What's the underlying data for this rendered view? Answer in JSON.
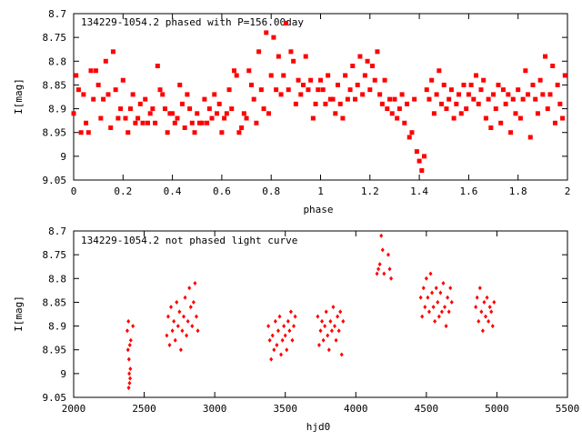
{
  "chart_data": [
    {
      "type": "scatter",
      "title": "134229-1054.2 phased with P=156.00day",
      "xlabel": "phase",
      "ylabel": "I[mag]",
      "xlim": [
        0,
        2
      ],
      "ylim": [
        8.7,
        9.05
      ],
      "y_inverted": true,
      "grid": false,
      "marker_color": "#ff0000",
      "marker": "filled-star",
      "xticks": [
        "0",
        "0.2",
        "0.4",
        "0.6",
        "0.8",
        "1",
        "1.2",
        "1.4",
        "1.6",
        "1.8",
        "2"
      ],
      "yticks": [
        "8.7",
        "8.75",
        "8.8",
        "8.85",
        "8.9",
        "8.95",
        "9",
        "9.05"
      ],
      "points": [
        [
          0.0,
          8.91
        ],
        [
          0.01,
          8.83
        ],
        [
          0.02,
          8.86
        ],
        [
          0.03,
          8.95
        ],
        [
          0.04,
          8.87
        ],
        [
          0.05,
          8.93
        ],
        [
          0.06,
          8.95
        ],
        [
          0.07,
          8.82
        ],
        [
          0.08,
          8.88
        ],
        [
          0.09,
          8.82
        ],
        [
          0.1,
          8.85
        ],
        [
          0.11,
          8.92
        ],
        [
          0.12,
          8.88
        ],
        [
          0.13,
          8.8
        ],
        [
          0.14,
          8.87
        ],
        [
          0.15,
          8.94
        ],
        [
          0.16,
          8.78
        ],
        [
          0.17,
          8.86
        ],
        [
          0.18,
          8.92
        ],
        [
          0.19,
          8.9
        ],
        [
          0.2,
          8.84
        ],
        [
          0.21,
          8.92
        ],
        [
          0.22,
          8.95
        ],
        [
          0.23,
          8.9
        ],
        [
          0.24,
          8.87
        ],
        [
          0.25,
          8.93
        ],
        [
          0.26,
          8.92
        ],
        [
          0.27,
          8.89
        ],
        [
          0.28,
          8.93
        ],
        [
          0.29,
          8.88
        ],
        [
          0.3,
          8.93
        ],
        [
          0.31,
          8.91
        ],
        [
          0.32,
          8.9
        ],
        [
          0.33,
          8.93
        ],
        [
          0.34,
          8.81
        ],
        [
          0.35,
          8.86
        ],
        [
          0.36,
          8.87
        ],
        [
          0.37,
          8.9
        ],
        [
          0.38,
          8.95
        ],
        [
          0.39,
          8.91
        ],
        [
          0.4,
          8.91
        ],
        [
          0.41,
          8.93
        ],
        [
          0.42,
          8.92
        ],
        [
          0.43,
          8.85
        ],
        [
          0.44,
          8.89
        ],
        [
          0.45,
          8.94
        ],
        [
          0.46,
          8.87
        ],
        [
          0.47,
          8.9
        ],
        [
          0.48,
          8.93
        ],
        [
          0.49,
          8.95
        ],
        [
          0.5,
          8.91
        ],
        [
          0.51,
          8.93
        ],
        [
          0.52,
          8.93
        ],
        [
          0.53,
          8.88
        ],
        [
          0.54,
          8.93
        ],
        [
          0.55,
          8.9
        ],
        [
          0.56,
          8.92
        ],
        [
          0.57,
          8.87
        ],
        [
          0.58,
          8.91
        ],
        [
          0.59,
          8.89
        ],
        [
          0.6,
          8.95
        ],
        [
          0.61,
          8.92
        ],
        [
          0.62,
          8.91
        ],
        [
          0.63,
          8.86
        ],
        [
          0.64,
          8.9
        ],
        [
          0.65,
          8.82
        ],
        [
          0.66,
          8.83
        ],
        [
          0.67,
          8.95
        ],
        [
          0.68,
          8.94
        ],
        [
          0.69,
          8.91
        ],
        [
          0.7,
          8.92
        ],
        [
          0.71,
          8.82
        ],
        [
          0.72,
          8.85
        ],
        [
          0.73,
          8.88
        ],
        [
          0.74,
          8.93
        ],
        [
          0.75,
          8.78
        ],
        [
          0.76,
          8.86
        ],
        [
          0.77,
          8.9
        ],
        [
          0.78,
          8.74
        ],
        [
          0.79,
          8.91
        ],
        [
          0.8,
          8.83
        ],
        [
          0.81,
          8.75
        ],
        [
          0.82,
          8.86
        ],
        [
          0.83,
          8.79
        ],
        [
          0.84,
          8.87
        ],
        [
          0.85,
          8.83
        ],
        [
          0.86,
          8.72
        ],
        [
          0.87,
          8.86
        ],
        [
          0.88,
          8.78
        ],
        [
          0.89,
          8.8
        ],
        [
          0.9,
          8.89
        ],
        [
          0.91,
          8.84
        ],
        [
          0.92,
          8.87
        ],
        [
          0.93,
          8.85
        ],
        [
          0.94,
          8.79
        ],
        [
          0.95,
          8.86
        ],
        [
          0.96,
          8.84
        ],
        [
          0.97,
          8.92
        ],
        [
          0.98,
          8.89
        ],
        [
          0.99,
          8.86
        ],
        [
          1.0,
          8.84
        ],
        [
          1.01,
          8.86
        ],
        [
          1.02,
          8.89
        ],
        [
          1.03,
          8.83
        ],
        [
          1.04,
          8.88
        ],
        [
          1.05,
          8.88
        ],
        [
          1.06,
          8.91
        ],
        [
          1.07,
          8.85
        ],
        [
          1.08,
          8.89
        ],
        [
          1.09,
          8.92
        ],
        [
          1.1,
          8.83
        ],
        [
          1.11,
          8.88
        ],
        [
          1.12,
          8.86
        ],
        [
          1.13,
          8.81
        ],
        [
          1.14,
          8.88
        ],
        [
          1.15,
          8.85
        ],
        [
          1.16,
          8.79
        ],
        [
          1.17,
          8.87
        ],
        [
          1.18,
          8.83
        ],
        [
          1.19,
          8.8
        ],
        [
          1.2,
          8.86
        ],
        [
          1.21,
          8.81
        ],
        [
          1.22,
          8.84
        ],
        [
          1.23,
          8.78
        ],
        [
          1.24,
          8.87
        ],
        [
          1.25,
          8.89
        ],
        [
          1.26,
          8.84
        ],
        [
          1.27,
          8.9
        ],
        [
          1.28,
          8.88
        ],
        [
          1.29,
          8.91
        ],
        [
          1.3,
          8.88
        ],
        [
          1.31,
          8.92
        ],
        [
          1.32,
          8.9
        ],
        [
          1.33,
          8.87
        ],
        [
          1.34,
          8.93
        ],
        [
          1.35,
          8.89
        ],
        [
          1.36,
          8.96
        ],
        [
          1.37,
          8.95
        ],
        [
          1.38,
          8.88
        ],
        [
          1.39,
          8.99
        ],
        [
          1.4,
          9.01
        ],
        [
          1.41,
          9.03
        ],
        [
          1.42,
          9.0
        ],
        [
          1.43,
          8.86
        ],
        [
          1.44,
          8.88
        ],
        [
          1.45,
          8.84
        ],
        [
          1.46,
          8.91
        ],
        [
          1.47,
          8.87
        ],
        [
          1.48,
          8.82
        ],
        [
          1.49,
          8.89
        ],
        [
          1.5,
          8.85
        ],
        [
          1.51,
          8.9
        ],
        [
          1.52,
          8.88
        ],
        [
          1.53,
          8.86
        ],
        [
          1.54,
          8.92
        ],
        [
          1.55,
          8.89
        ],
        [
          1.56,
          8.87
        ],
        [
          1.57,
          8.91
        ],
        [
          1.58,
          8.85
        ],
        [
          1.59,
          8.9
        ],
        [
          1.6,
          8.87
        ],
        [
          1.61,
          8.85
        ],
        [
          1.62,
          8.88
        ],
        [
          1.63,
          8.83
        ],
        [
          1.64,
          8.89
        ],
        [
          1.65,
          8.86
        ],
        [
          1.66,
          8.84
        ],
        [
          1.67,
          8.92
        ],
        [
          1.68,
          8.88
        ],
        [
          1.69,
          8.94
        ],
        [
          1.7,
          8.87
        ],
        [
          1.71,
          8.9
        ],
        [
          1.72,
          8.85
        ],
        [
          1.73,
          8.93
        ],
        [
          1.74,
          8.86
        ],
        [
          1.75,
          8.89
        ],
        [
          1.76,
          8.87
        ],
        [
          1.77,
          8.95
        ],
        [
          1.78,
          8.88
        ],
        [
          1.79,
          8.91
        ],
        [
          1.8,
          8.86
        ],
        [
          1.81,
          8.92
        ],
        [
          1.82,
          8.88
        ],
        [
          1.83,
          8.82
        ],
        [
          1.84,
          8.87
        ],
        [
          1.85,
          8.96
        ],
        [
          1.86,
          8.85
        ],
        [
          1.87,
          8.88
        ],
        [
          1.88,
          8.91
        ],
        [
          1.89,
          8.84
        ],
        [
          1.9,
          8.87
        ],
        [
          1.91,
          8.79
        ],
        [
          1.92,
          8.9
        ],
        [
          1.93,
          8.87
        ],
        [
          1.94,
          8.81
        ],
        [
          1.95,
          8.93
        ],
        [
          1.96,
          8.85
        ],
        [
          1.97,
          8.89
        ],
        [
          1.98,
          8.92
        ],
        [
          1.99,
          8.83
        ]
      ]
    },
    {
      "type": "scatter",
      "title": "134229-1054.2 not phased light curve",
      "xlabel": "hjd0",
      "ylabel": "I[mag]",
      "xlim": [
        2000,
        5500
      ],
      "ylim": [
        8.7,
        9.05
      ],
      "y_inverted": true,
      "grid": false,
      "marker_color": "#ff0000",
      "marker": "filled-diamond",
      "xticks": [
        "2000",
        "2500",
        "3000",
        "3500",
        "4000",
        "4500",
        "5000",
        "5500"
      ],
      "yticks": [
        "8.7",
        "8.75",
        "8.8",
        "8.85",
        "8.9",
        "8.95",
        "9",
        "9.05"
      ],
      "points": [
        [
          2380,
          8.91
        ],
        [
          2385,
          8.95
        ],
        [
          2388,
          8.89
        ],
        [
          2390,
          9.03
        ],
        [
          2392,
          8.97
        ],
        [
          2394,
          9.0
        ],
        [
          2396,
          9.02
        ],
        [
          2398,
          8.94
        ],
        [
          2400,
          9.01
        ],
        [
          2402,
          8.99
        ],
        [
          2405,
          8.93
        ],
        [
          2420,
          8.9
        ],
        [
          2660,
          8.92
        ],
        [
          2670,
          8.88
        ],
        [
          2680,
          8.94
        ],
        [
          2690,
          8.86
        ],
        [
          2700,
          8.91
        ],
        [
          2710,
          8.89
        ],
        [
          2720,
          8.93
        ],
        [
          2730,
          8.85
        ],
        [
          2740,
          8.9
        ],
        [
          2750,
          8.87
        ],
        [
          2760,
          8.95
        ],
        [
          2770,
          8.91
        ],
        [
          2780,
          8.88
        ],
        [
          2790,
          8.84
        ],
        [
          2800,
          8.92
        ],
        [
          2810,
          8.89
        ],
        [
          2820,
          8.82
        ],
        [
          2830,
          8.86
        ],
        [
          2840,
          8.9
        ],
        [
          2850,
          8.85
        ],
        [
          2860,
          8.81
        ],
        [
          2870,
          8.88
        ],
        [
          2880,
          8.91
        ],
        [
          3380,
          8.9
        ],
        [
          3390,
          8.93
        ],
        [
          3400,
          8.97
        ],
        [
          3410,
          8.92
        ],
        [
          3420,
          8.95
        ],
        [
          3430,
          8.89
        ],
        [
          3440,
          8.94
        ],
        [
          3450,
          8.91
        ],
        [
          3460,
          8.88
        ],
        [
          3470,
          8.96
        ],
        [
          3480,
          8.93
        ],
        [
          3490,
          8.9
        ],
        [
          3500,
          8.92
        ],
        [
          3510,
          8.95
        ],
        [
          3520,
          8.89
        ],
        [
          3530,
          8.91
        ],
        [
          3540,
          8.87
        ],
        [
          3550,
          8.93
        ],
        [
          3560,
          8.9
        ],
        [
          3570,
          8.88
        ],
        [
          3730,
          8.88
        ],
        [
          3740,
          8.94
        ],
        [
          3750,
          8.91
        ],
        [
          3760,
          8.89
        ],
        [
          3770,
          8.93
        ],
        [
          3780,
          8.9
        ],
        [
          3790,
          8.87
        ],
        [
          3800,
          8.92
        ],
        [
          3810,
          8.95
        ],
        [
          3820,
          8.89
        ],
        [
          3830,
          8.91
        ],
        [
          3840,
          8.86
        ],
        [
          3850,
          8.9
        ],
        [
          3860,
          8.93
        ],
        [
          3870,
          8.88
        ],
        [
          3880,
          8.91
        ],
        [
          3890,
          8.87
        ],
        [
          3900,
          8.96
        ],
        [
          3910,
          8.89
        ],
        [
          4150,
          8.79
        ],
        [
          4160,
          8.78
        ],
        [
          4170,
          8.77
        ],
        [
          4180,
          8.71
        ],
        [
          4190,
          8.74
        ],
        [
          4200,
          8.79
        ],
        [
          4230,
          8.75
        ],
        [
          4240,
          8.78
        ],
        [
          4250,
          8.8
        ],
        [
          4460,
          8.84
        ],
        [
          4470,
          8.88
        ],
        [
          4480,
          8.82
        ],
        [
          4490,
          8.86
        ],
        [
          4500,
          8.8
        ],
        [
          4510,
          8.84
        ],
        [
          4520,
          8.87
        ],
        [
          4530,
          8.79
        ],
        [
          4540,
          8.83
        ],
        [
          4550,
          8.86
        ],
        [
          4560,
          8.89
        ],
        [
          4570,
          8.82
        ],
        [
          4580,
          8.85
        ],
        [
          4590,
          8.88
        ],
        [
          4600,
          8.83
        ],
        [
          4610,
          8.87
        ],
        [
          4620,
          8.81
        ],
        [
          4630,
          8.86
        ],
        [
          4640,
          8.9
        ],
        [
          4650,
          8.84
        ],
        [
          4660,
          8.87
        ],
        [
          4670,
          8.82
        ],
        [
          4680,
          8.85
        ],
        [
          4850,
          8.86
        ],
        [
          4860,
          8.84
        ],
        [
          4870,
          8.89
        ],
        [
          4880,
          8.82
        ],
        [
          4890,
          8.87
        ],
        [
          4900,
          8.91
        ],
        [
          4910,
          8.85
        ],
        [
          4920,
          8.88
        ],
        [
          4930,
          8.84
        ],
        [
          4940,
          8.89
        ],
        [
          4950,
          8.86
        ],
        [
          4960,
          8.87
        ],
        [
          4970,
          8.9
        ],
        [
          4980,
          8.85
        ]
      ]
    }
  ]
}
